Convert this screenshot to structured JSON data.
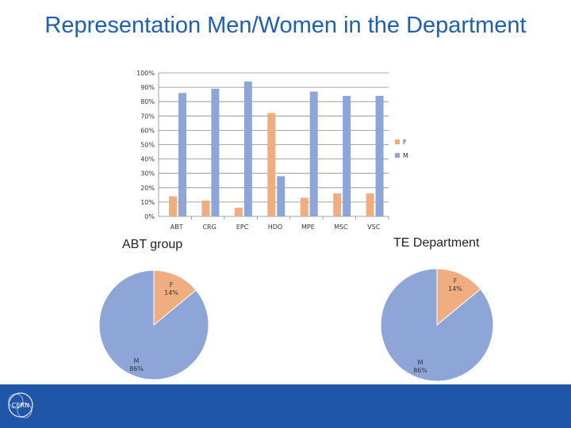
{
  "slide": {
    "title": "Representation Men/Women in the Department",
    "logo_text": "CERN"
  },
  "colors": {
    "F": "#f0ae80",
    "M": "#8ea5d8",
    "footer": "#2056a8"
  },
  "chart_data": [
    {
      "type": "bar",
      "categories": [
        "ABT",
        "CRG",
        "EPC",
        "HDO",
        "MPE",
        "MSC",
        "VSC"
      ],
      "series": [
        {
          "name": "F",
          "values": [
            14,
            11,
            6,
            72,
            13,
            16,
            16
          ]
        },
        {
          "name": "M",
          "values": [
            86,
            89,
            94,
            28,
            87,
            84,
            84
          ]
        }
      ],
      "yticks": [
        "0%",
        "10%",
        "20%",
        "30%",
        "40%",
        "50%",
        "60%",
        "70%",
        "80%",
        "90%",
        "100%"
      ],
      "ylim": [
        0,
        100
      ],
      "grid": true,
      "legend_position": "right"
    },
    {
      "type": "pie",
      "title": "ABT group",
      "slices": [
        {
          "label": "F",
          "value": 14,
          "text": "14%"
        },
        {
          "label": "M",
          "value": 86,
          "text": "86%"
        }
      ]
    },
    {
      "type": "pie",
      "title": "TE Department",
      "slices": [
        {
          "label": "F",
          "value": 14,
          "text": "14%"
        },
        {
          "label": "M",
          "value": 86,
          "text": "86%"
        }
      ]
    }
  ]
}
